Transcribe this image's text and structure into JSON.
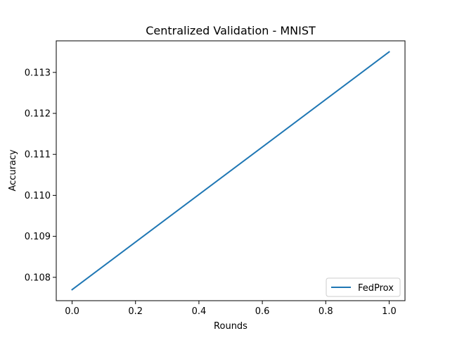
{
  "chart_data": {
    "type": "line",
    "title": "Centralized Validation - MNIST",
    "xlabel": "Rounds",
    "ylabel": "Accuracy",
    "xlim": [
      -0.05,
      1.05
    ],
    "ylim": [
      0.10743,
      0.11377
    ],
    "x_ticks": [
      "0.0",
      "0.2",
      "0.4",
      "0.6",
      "0.8",
      "1.0"
    ],
    "y_ticks": [
      "0.108",
      "0.109",
      "0.110",
      "0.111",
      "0.112",
      "0.113"
    ],
    "grid": false,
    "legend_position": "lower-right",
    "series": [
      {
        "name": "FedProx",
        "color": "#1f77b4",
        "x": [
          0,
          1
        ],
        "y": [
          0.1077,
          0.1135
        ]
      }
    ]
  }
}
